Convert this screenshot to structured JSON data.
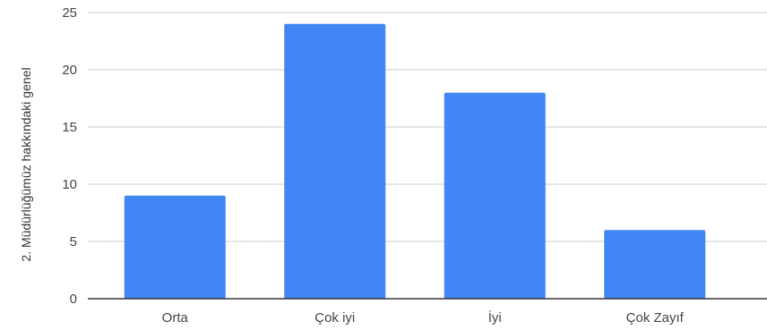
{
  "chart_data": {
    "type": "bar",
    "categories": [
      "Orta",
      "Çok iyi",
      "İyi",
      "Çok Zayıf"
    ],
    "values": [
      9,
      24,
      18,
      6
    ],
    "title": "",
    "xlabel": "",
    "ylabel": "2. Müdürlüğümüz hakkındaki genel",
    "ylim": [
      0,
      25
    ],
    "yticks": [
      "0",
      "5",
      "10",
      "15",
      "20",
      "25"
    ],
    "grid": true,
    "legend": "none",
    "bar_color": "#4285F4",
    "grid_color": "#CCCCCC",
    "axis_color": "#333333"
  }
}
